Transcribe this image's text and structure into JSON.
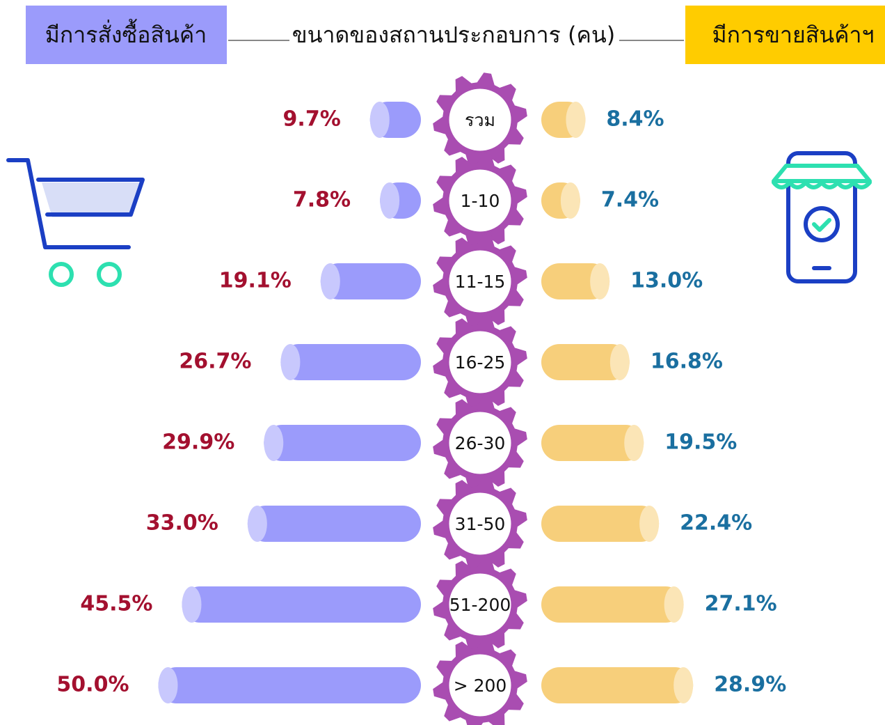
{
  "chart_data": {
    "type": "butterfly-bar",
    "title": "ขนาดของสถานประกอบการ (คน)",
    "categories": [
      "รวม",
      "1-10",
      "11-15",
      "16-25",
      "26-30",
      "31-50",
      "51-200",
      "> 200"
    ],
    "series": [
      {
        "name": "มีการสั่งซื้อสินค้า",
        "color": "#9b9bfb",
        "side": "left",
        "values": [
          9.7,
          7.8,
          19.1,
          26.7,
          29.9,
          33.0,
          45.5,
          50.0
        ],
        "value_labels": [
          "9.7%",
          "7.8%",
          "19.1%",
          "26.7%",
          "29.9%",
          "33.0%",
          "45.5%",
          "50.0%"
        ]
      },
      {
        "name": "มีการขายสินค้าฯ",
        "color": "#f7cf7b",
        "side": "right",
        "values": [
          8.4,
          7.4,
          13.0,
          16.8,
          19.5,
          22.4,
          27.1,
          28.9
        ],
        "value_labels": [
          "8.4%",
          "7.4%",
          "13.0%",
          "16.8%",
          "19.5%",
          "22.4%",
          "27.1%",
          "28.9%"
        ]
      }
    ]
  }
}
